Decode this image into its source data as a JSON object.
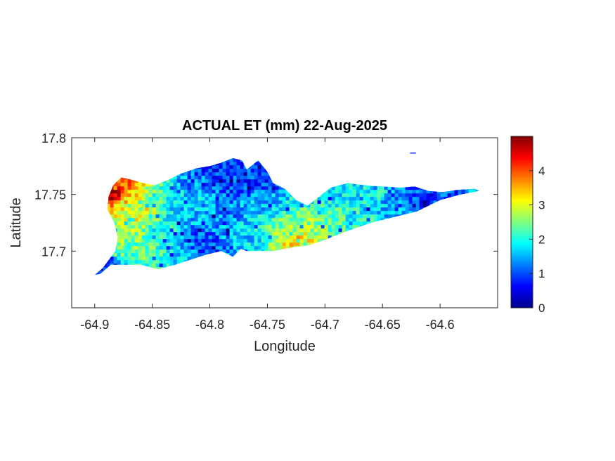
{
  "chart_data": {
    "type": "heatmap",
    "title": "ACTUAL ET (mm) 22-Aug-2025",
    "xlabel": "Longitude",
    "ylabel": "Latitude",
    "xlim": [
      -64.92,
      -64.55
    ],
    "ylim": [
      17.65,
      17.8
    ],
    "xticks": [
      -64.9,
      -64.85,
      -64.8,
      -64.75,
      -64.7,
      -64.65,
      -64.6
    ],
    "xtick_labels": [
      "-64.9",
      "-64.85",
      "-64.8",
      "-64.75",
      "-64.7",
      "-64.65",
      "-64.6"
    ],
    "yticks": [
      17.7,
      17.75,
      17.8
    ],
    "ytick_labels": [
      "17.7",
      "17.75",
      "17.8"
    ],
    "colorbar": {
      "colormap": "jet",
      "range": [
        0,
        5
      ],
      "ticks": [
        0,
        1,
        2,
        3,
        4
      ],
      "tick_labels": [
        "0",
        "1",
        "2",
        "3",
        "4"
      ]
    },
    "grid": false,
    "region_outline": [
      [
        -64.9,
        17.679
      ],
      [
        -64.893,
        17.685
      ],
      [
        -64.888,
        17.692
      ],
      [
        -64.882,
        17.7
      ],
      [
        -64.88,
        17.712
      ],
      [
        -64.883,
        17.725
      ],
      [
        -64.889,
        17.737
      ],
      [
        -64.888,
        17.748
      ],
      [
        -64.884,
        17.758
      ],
      [
        -64.877,
        17.765
      ],
      [
        -64.868,
        17.763
      ],
      [
        -64.858,
        17.76
      ],
      [
        -64.848,
        17.758
      ],
      [
        -64.838,
        17.762
      ],
      [
        -64.826,
        17.768
      ],
      [
        -64.812,
        17.773
      ],
      [
        -64.8,
        17.775
      ],
      [
        -64.79,
        17.778
      ],
      [
        -64.78,
        17.782
      ],
      [
        -64.772,
        17.78
      ],
      [
        -64.768,
        17.772
      ],
      [
        -64.758,
        17.78
      ],
      [
        -64.75,
        17.77
      ],
      [
        -64.745,
        17.76
      ],
      [
        -64.735,
        17.755
      ],
      [
        -64.725,
        17.745
      ],
      [
        -64.715,
        17.74
      ],
      [
        -64.705,
        17.748
      ],
      [
        -64.695,
        17.756
      ],
      [
        -64.68,
        17.76
      ],
      [
        -64.665,
        17.758
      ],
      [
        -64.65,
        17.757
      ],
      [
        -64.635,
        17.756
      ],
      [
        -64.622,
        17.757
      ],
      [
        -64.61,
        17.753
      ],
      [
        -64.598,
        17.752
      ],
      [
        -64.585,
        17.754
      ],
      [
        -64.57,
        17.755
      ],
      [
        -64.566,
        17.753
      ],
      [
        -64.582,
        17.75
      ],
      [
        -64.6,
        17.745
      ],
      [
        -64.62,
        17.735
      ],
      [
        -64.64,
        17.73
      ],
      [
        -64.66,
        17.725
      ],
      [
        -64.68,
        17.718
      ],
      [
        -64.7,
        17.71
      ],
      [
        -64.715,
        17.705
      ],
      [
        -64.73,
        17.703
      ],
      [
        -64.745,
        17.7
      ],
      [
        -64.758,
        17.7
      ],
      [
        -64.768,
        17.7
      ],
      [
        -64.773,
        17.702
      ],
      [
        -64.78,
        17.695
      ],
      [
        -64.79,
        17.7
      ],
      [
        -64.803,
        17.697
      ],
      [
        -64.815,
        17.693
      ],
      [
        -64.83,
        17.688
      ],
      [
        -64.845,
        17.684
      ],
      [
        -64.86,
        17.688
      ],
      [
        -64.875,
        17.688
      ],
      [
        -64.886,
        17.688
      ],
      [
        -64.895,
        17.68
      ]
    ],
    "islet_outline": [
      [
        -64.626,
        17.787
      ],
      [
        -64.621,
        17.787
      ],
      [
        -64.621,
        17.786
      ],
      [
        -64.626,
        17.786
      ]
    ],
    "value_field": [
      {
        "lon": -64.884,
        "lat": 17.75,
        "value": 4.7
      },
      {
        "lon": -64.878,
        "lat": 17.758,
        "value": 4.0
      },
      {
        "lon": -64.872,
        "lat": 17.748,
        "value": 3.4
      },
      {
        "lon": -64.87,
        "lat": 17.735,
        "value": 3.0
      },
      {
        "lon": -64.86,
        "lat": 17.733,
        "value": 3.2
      },
      {
        "lon": -64.875,
        "lat": 17.715,
        "value": 2.6
      },
      {
        "lon": -64.862,
        "lat": 17.7,
        "value": 2.4
      },
      {
        "lon": -64.895,
        "lat": 17.682,
        "value": 0.8
      },
      {
        "lon": -64.85,
        "lat": 17.745,
        "value": 2.2
      },
      {
        "lon": -64.84,
        "lat": 17.72,
        "value": 1.9
      },
      {
        "lon": -64.83,
        "lat": 17.745,
        "value": 1.7
      },
      {
        "lon": -64.82,
        "lat": 17.73,
        "value": 1.5
      },
      {
        "lon": -64.81,
        "lat": 17.715,
        "value": 1.1
      },
      {
        "lon": -64.8,
        "lat": 17.705,
        "value": 1.0
      },
      {
        "lon": -64.815,
        "lat": 17.76,
        "value": 1.3
      },
      {
        "lon": -64.79,
        "lat": 17.77,
        "value": 0.9
      },
      {
        "lon": -64.785,
        "lat": 17.735,
        "value": 1.3
      },
      {
        "lon": -64.775,
        "lat": 17.755,
        "value": 0.9
      },
      {
        "lon": -64.765,
        "lat": 17.71,
        "value": 1.7
      },
      {
        "lon": -64.758,
        "lat": 17.74,
        "value": 1.6
      },
      {
        "lon": -64.75,
        "lat": 17.765,
        "value": 0.8
      },
      {
        "lon": -64.74,
        "lat": 17.715,
        "value": 2.5
      },
      {
        "lon": -64.728,
        "lat": 17.708,
        "value": 3.4
      },
      {
        "lon": -64.72,
        "lat": 17.705,
        "value": 3.0
      },
      {
        "lon": -64.715,
        "lat": 17.725,
        "value": 2.6
      },
      {
        "lon": -64.705,
        "lat": 17.745,
        "value": 2.0
      },
      {
        "lon": -64.695,
        "lat": 17.73,
        "value": 2.3
      },
      {
        "lon": -64.685,
        "lat": 17.75,
        "value": 1.8
      },
      {
        "lon": -64.675,
        "lat": 17.735,
        "value": 2.0
      },
      {
        "lon": -64.665,
        "lat": 17.72,
        "value": 2.1
      },
      {
        "lon": -64.66,
        "lat": 17.75,
        "value": 1.9
      },
      {
        "lon": -64.645,
        "lat": 17.74,
        "value": 1.5
      },
      {
        "lon": -64.635,
        "lat": 17.73,
        "value": 1.6
      },
      {
        "lon": -64.625,
        "lat": 17.748,
        "value": 1.0
      },
      {
        "lon": -64.612,
        "lat": 17.745,
        "value": 0.8
      },
      {
        "lon": -64.6,
        "lat": 17.748,
        "value": 1.0
      },
      {
        "lon": -64.585,
        "lat": 17.752,
        "value": 0.9
      },
      {
        "lon": -64.572,
        "lat": 17.754,
        "value": 1.4
      },
      {
        "lon": -64.623,
        "lat": 17.786,
        "value": 0.5
      }
    ]
  }
}
